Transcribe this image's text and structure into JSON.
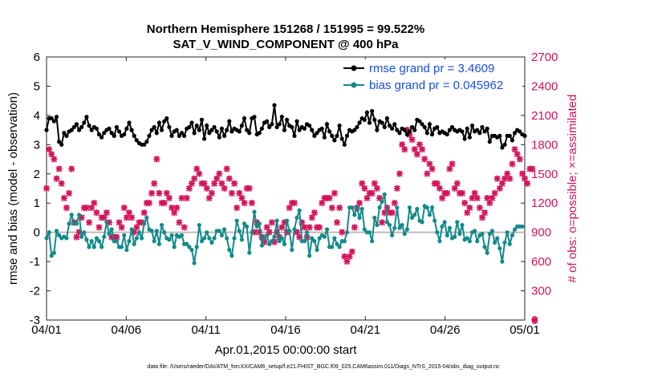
{
  "chart_data": {
    "type": "line",
    "title": "Northern Hemisphere 151268 / 151995 = 99.522%",
    "subtitle": "SAT_V_WIND_COMPONENT @ 400 hPa",
    "xlabel": "Apr.01,2015 00:00:00 start",
    "ylabel_left": "rmse and bias (model - observation)",
    "ylabel_right": "# of obs: o=possible; ×=assimilated",
    "footnote": "data file: /Users/raeder/DAI/ATM_forcXX/CAM6_setup/f.e21.FHIST_BGC.f09_025.CAM6assim.011/Diags_NTrS_2015-04/obs_diag_output.nc",
    "x_ticks": [
      "04/01",
      "04/06",
      "04/11",
      "04/16",
      "04/21",
      "04/26",
      "05/01"
    ],
    "x_tick_days": [
      0,
      5,
      10,
      15,
      20,
      25,
      30
    ],
    "xlim": [
      0,
      30
    ],
    "ylim_left": [
      -3,
      6
    ],
    "ylim_right": [
      0,
      2700
    ],
    "y_ticks_left": [
      "-3",
      "-2",
      "-1",
      "0",
      "1",
      "2",
      "3",
      "4",
      "5",
      "6"
    ],
    "y_ticks_right": [
      "0",
      "300",
      "600",
      "900",
      "1200",
      "1500",
      "1800",
      "2100",
      "2400",
      "2700"
    ],
    "legend": [
      {
        "label": "rmse grand pr = 3.4609",
        "color": "#000000",
        "marker": "circle"
      },
      {
        "label": "bias grand pr = 0.045962",
        "color": "#138a8a",
        "marker": "circle"
      }
    ],
    "colors": {
      "rmse": "#000000",
      "bias": "#138a8a",
      "obs": "#d4145a",
      "zero_line": "#c0b8b8",
      "legend_text": "#1a4fe0"
    },
    "series": [
      {
        "name": "rmse",
        "values": [
          3.5,
          3.9,
          3.9,
          3.8,
          3.95,
          3.1,
          3.0,
          3.4,
          3.3,
          3.45,
          3.5,
          3.6,
          3.7,
          3.5,
          3.6,
          3.75,
          3.95,
          3.65,
          3.5,
          3.6,
          3.55,
          3.35,
          3.25,
          3.4,
          3.5,
          3.55,
          3.4,
          3.3,
          3.6,
          3.45,
          3.3,
          3.35,
          3.55,
          3.75,
          3.5,
          3.3,
          3.15,
          3.05,
          3.0,
          3.0,
          3.1,
          3.3,
          3.5,
          3.6,
          3.4,
          3.75,
          3.5,
          3.8,
          3.9,
          3.6,
          3.3,
          3.45,
          3.5,
          3.3,
          3.4,
          3.3,
          3.55,
          3.6,
          3.75,
          3.4,
          3.65,
          3.5,
          3.85,
          3.2,
          3.65,
          3.4,
          3.5,
          3.6,
          3.45,
          3.25,
          3.55,
          3.3,
          3.5,
          3.8,
          3.45,
          3.55,
          3.5,
          3.45,
          3.65,
          3.9,
          3.5,
          3.4,
          3.9,
          3.95,
          3.35,
          3.4,
          3.55,
          3.75,
          3.8,
          3.6,
          3.7,
          4.35,
          3.6,
          3.7,
          3.95,
          3.5,
          3.85,
          3.65,
          3.6,
          3.3,
          3.8,
          3.5,
          3.6,
          3.55,
          3.7,
          3.65,
          3.5,
          3.3,
          3.4,
          3.5,
          3.55,
          3.25,
          3.7,
          3.45,
          3.3,
          3.15,
          3.3,
          3.65,
          3.2,
          3.0,
          3.3,
          3.5,
          3.45,
          3.5,
          3.6,
          3.75,
          3.9,
          3.85,
          4.1,
          3.75,
          4.15,
          3.85,
          3.5,
          3.8,
          3.75,
          3.6,
          3.9,
          3.65,
          3.55,
          3.7,
          3.5,
          3.4,
          3.55,
          3.5,
          3.35,
          3.45,
          3.6,
          3.5,
          3.85,
          3.8,
          3.7,
          3.6,
          3.4,
          3.7,
          3.35,
          3.55,
          3.6,
          3.4,
          3.45,
          3.4,
          3.35,
          3.5,
          3.6,
          3.5,
          3.45,
          3.5,
          3.45,
          3.2,
          3.55,
          3.25,
          3.65,
          3.45,
          3.5,
          3.4,
          3.6,
          3.45,
          3.55,
          3.1,
          3.3,
          3.3,
          3.25,
          3.3,
          2.9,
          3.0,
          3.3,
          3.3,
          3.15,
          3.4,
          3.5,
          3.45,
          3.35,
          3.3
        ]
      },
      {
        "name": "bias",
        "values": [
          -0.2,
          0.0,
          -0.8,
          -0.7,
          0.05,
          -0.1,
          -0.2,
          -0.15,
          -0.2,
          0.3,
          0.6,
          0.3,
          0.3,
          0.6,
          -0.15,
          0.0,
          -0.25,
          -0.5,
          -0.3,
          -0.5,
          -0.2,
          -0.3,
          -0.5,
          -0.15,
          0.35,
          -0.05,
          0.1,
          -0.3,
          -0.3,
          -0.5,
          -0.5,
          -0.1,
          -0.6,
          -0.3,
          0.1,
          -0.4,
          -0.2,
          0.0,
          -0.2,
          0.3,
          0.5,
          0.1,
          0.05,
          -0.3,
          0.05,
          -0.4,
          0.25,
          0.0,
          -0.2,
          -0.25,
          -0.1,
          -0.5,
          -0.1,
          -0.15,
          -0.1,
          -0.4,
          -0.4,
          -0.5,
          -0.6,
          -1.05,
          -0.5,
          0.25,
          -0.3,
          -0.2,
          0.0,
          -0.2,
          -0.35,
          -0.2,
          0.05,
          0.05,
          -0.1,
          0.1,
          -0.2,
          -0.6,
          -0.8,
          -0.2,
          0.4,
          0.05,
          -0.25,
          0.3,
          0.2,
          -0.7,
          0.0,
          0.7,
          0.2,
          0.3,
          -0.45,
          -0.2,
          -0.1,
          -0.4,
          -0.3,
          -0.15,
          0.4,
          -0.3,
          -0.2,
          -0.4,
          0.4,
          0.05,
          -0.6,
          0.1,
          0.5,
          0.75,
          -0.3,
          -0.3,
          0.0,
          -0.8,
          -0.2,
          -0.3,
          -0.6,
          -0.2,
          -0.1,
          -0.15,
          0.1,
          -0.5,
          -0.5,
          -0.2,
          -0.4,
          -0.5,
          -0.3,
          -0.3,
          0.0,
          0.85,
          0.85,
          0.6,
          0.85,
          0.5,
          0.8,
          0.1,
          0.0,
          0.0,
          -0.3,
          0.5,
          0.25,
          0.85,
          1.05,
          1.3,
          0.35,
          0.25,
          -0.1,
          0.15,
          0.85,
          0.15,
          0.25,
          -0.05,
          0.1,
          0.85,
          0.5,
          0.6,
          0.8,
          0.4,
          0.35,
          0.9,
          0.85,
          0.6,
          0.85,
          0.4,
          0.0,
          -0.3,
          0.2,
          0.35,
          -0.1,
          0.15,
          -0.2,
          -0.15,
          0.35,
          -0.05,
          0.25,
          -0.25,
          -0.2,
          -0.3,
          0.0,
          0.05,
          -0.3,
          -0.1,
          -0.05,
          -0.5,
          -0.7,
          -0.05,
          0.05,
          -0.35,
          -0.2,
          -0.55,
          -1.0,
          -0.35,
          0.0,
          -0.4,
          -0.1,
          0.1,
          0.2,
          0.2,
          0.2
        ]
      },
      {
        "name": "obs_assimilated",
        "values": [
          1350,
          1750,
          1700,
          1650,
          1450,
          1550,
          1400,
          1250,
          1150,
          1300,
          1550,
          1000,
          850,
          900,
          1050,
          1150,
          1150,
          1000,
          1150,
          1200,
          1100,
          950,
          1050,
          1050,
          1100,
          1000,
          850,
          850,
          850,
          1000,
          950,
          1150,
          1050,
          1100,
          1050,
          900,
          950,
          1000,
          1000,
          1100,
          1200,
          1200,
          1300,
          1400,
          1650,
          1300,
          1200,
          1200,
          1300,
          1250,
          1150,
          1100,
          1150,
          1000,
          1250,
          950,
          1250,
          1350,
          1400,
          1450,
          1550,
          1500,
          1400,
          1400,
          1350,
          1250,
          1300,
          1400,
          1450,
          1500,
          1400,
          1350,
          1550,
          1450,
          1300,
          1400,
          1150,
          1300,
          1250,
          1200,
          1350,
          1350,
          1200,
          900,
          1000,
          900,
          850,
          800,
          950,
          900,
          1000,
          800,
          900,
          850,
          950,
          1000,
          900,
          1150,
          1200,
          1200,
          900,
          850,
          1000,
          950,
          850,
          950,
          1050,
          1100,
          950,
          950,
          1200,
          1250,
          1250,
          1250,
          1150,
          1300,
          1000,
          1150,
          900,
          650,
          600,
          650,
          700,
          950,
          1150,
          1200,
          1400,
          1350,
          1250,
          1300,
          1300,
          1400,
          1350,
          1250,
          1000,
          1100,
          1150,
          1100,
          1100,
          1200,
          1350,
          1500,
          1800,
          1750,
          1950,
          1900,
          1850,
          1750,
          1700,
          1800,
          1750,
          1650,
          1500,
          1600,
          1550,
          1400,
          1400,
          1350,
          1250,
          1300,
          1300,
          1550,
          1600,
          1350,
          1400,
          1300,
          1300,
          1200,
          1100,
          1150,
          1250,
          1300,
          1250,
          1150,
          1050,
          1100,
          1250,
          1200,
          1250,
          1300,
          1450,
          1350,
          1400,
          1450,
          1500,
          1450,
          1600,
          1750,
          1700,
          1650,
          1500,
          1450,
          1400,
          1550,
          1550,
          0
        ]
      },
      {
        "name": "obs_possible",
        "values": [
          1360,
          1760,
          1710,
          1660,
          1460,
          1560,
          1410,
          1260,
          1160,
          1310,
          1560,
          1010,
          860,
          910,
          1060,
          1160,
          1160,
          1010,
          1160,
          1210,
          1110,
          960,
          1060,
          1060,
          1110,
          1010,
          860,
          860,
          860,
          1010,
          960,
          1160,
          1060,
          1110,
          1060,
          910,
          960,
          1010,
          1010,
          1110,
          1210,
          1210,
          1310,
          1410,
          1660,
          1310,
          1210,
          1210,
          1310,
          1260,
          1160,
          1110,
          1160,
          1010,
          1260,
          960,
          1260,
          1360,
          1410,
          1460,
          1560,
          1510,
          1410,
          1410,
          1360,
          1260,
          1310,
          1410,
          1460,
          1510,
          1410,
          1360,
          1560,
          1460,
          1310,
          1410,
          1160,
          1310,
          1260,
          1210,
          1360,
          1360,
          1210,
          910,
          1010,
          910,
          860,
          810,
          960,
          910,
          1010,
          810,
          910,
          860,
          960,
          1010,
          910,
          1160,
          1210,
          1210,
          910,
          860,
          1010,
          960,
          860,
          960,
          1060,
          1110,
          960,
          960,
          1210,
          1260,
          1260,
          1260,
          1160,
          1310,
          1010,
          1160,
          910,
          660,
          610,
          660,
          710,
          960,
          1160,
          1210,
          1410,
          1360,
          1260,
          1310,
          1310,
          1410,
          1360,
          1260,
          1010,
          1110,
          1160,
          1110,
          1110,
          1210,
          1360,
          1510,
          1810,
          1760,
          1960,
          1910,
          1860,
          1760,
          1710,
          1810,
          1760,
          1660,
          1510,
          1610,
          1560,
          1410,
          1410,
          1360,
          1260,
          1310,
          1310,
          1560,
          1610,
          1360,
          1410,
          1310,
          1310,
          1210,
          1110,
          1160,
          1260,
          1310,
          1260,
          1160,
          1060,
          1110,
          1260,
          1210,
          1260,
          1310,
          1460,
          1360,
          1410,
          1460,
          1510,
          1460,
          1610,
          1760,
          1710,
          1660,
          1510,
          1460,
          1410,
          1560,
          1560,
          0
        ]
      }
    ]
  }
}
